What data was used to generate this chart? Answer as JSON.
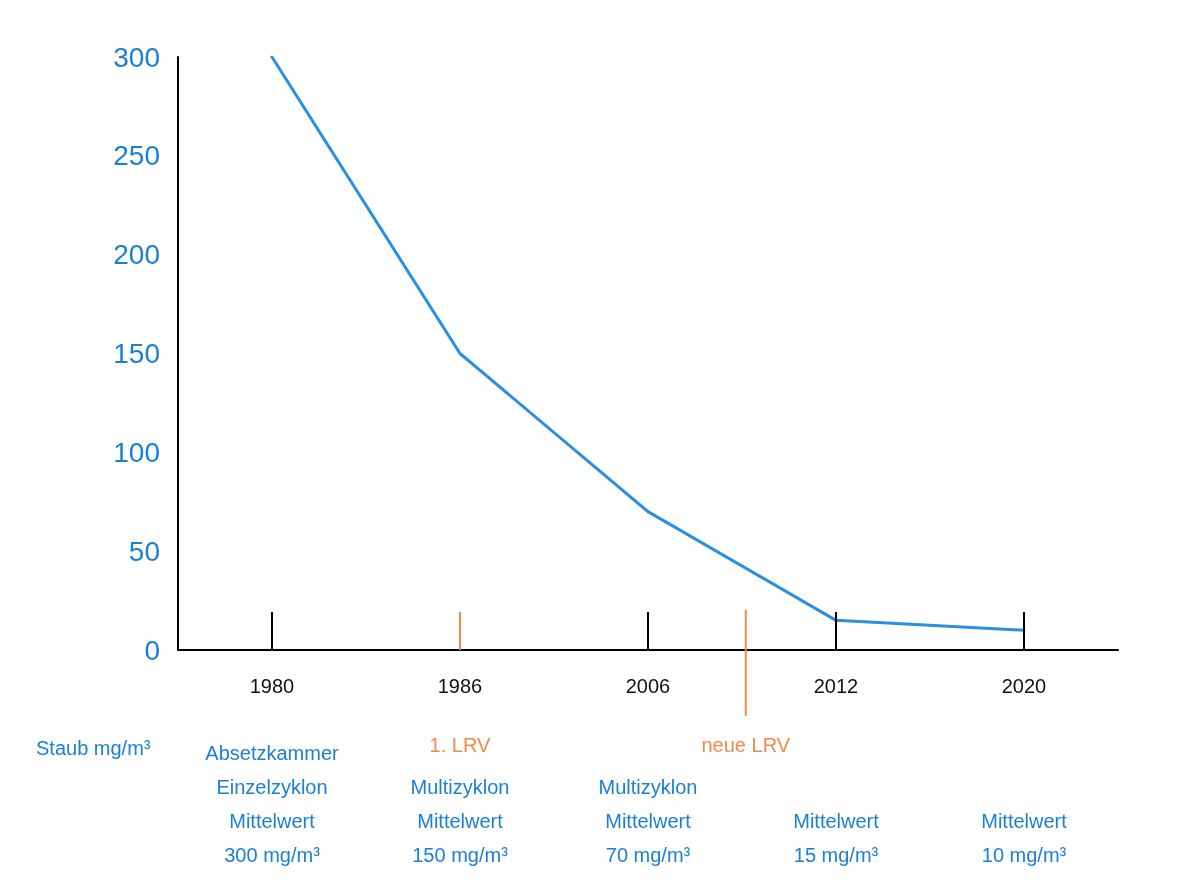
{
  "chart_data": {
    "type": "line",
    "ylabel": "Staub mg/m³",
    "categories": [
      "1980",
      "1986",
      "2006",
      "2012",
      "2020"
    ],
    "series": [
      {
        "color": "#2a8fe0",
        "values": [
          300,
          150,
          70,
          15,
          10
        ]
      }
    ],
    "ylim": [
      0,
      300
    ],
    "yticks": [
      0,
      50,
      100,
      150,
      200,
      250,
      300
    ],
    "grid": false,
    "marker": "none",
    "line_style": "solid",
    "annotations": [
      "Absetzkammer\nEinzelzyklon\nMittelwert\n300 mg/m³",
      "Multizyklon\nMittelwert\n150 mg/m³",
      "Multizyklon\nMittelwert\n70 mg/m³",
      "Mittelwert\n15 mg/m³",
      "Mittelwert\n10 mg/m³",
      "1. LRV",
      "neue LRV"
    ]
  }
}
